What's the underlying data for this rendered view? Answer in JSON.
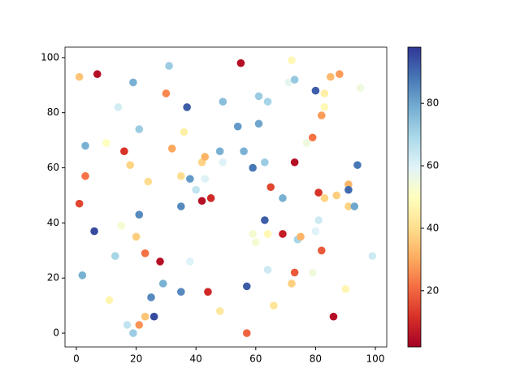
{
  "chart_data": {
    "type": "scatter",
    "colormap": "RdYlBu",
    "x": [
      1,
      7,
      19,
      31,
      55,
      72,
      30,
      14,
      37,
      49,
      61,
      64,
      71,
      73,
      80,
      85,
      88,
      95,
      83,
      83,
      82,
      21,
      36,
      54,
      61,
      3,
      10,
      16,
      32,
      48,
      56,
      77,
      79,
      18,
      42,
      43,
      49,
      59,
      63,
      73,
      94,
      3,
      24,
      35,
      38,
      43,
      40,
      65,
      69,
      81,
      83,
      87,
      91,
      91,
      91,
      93,
      1,
      6,
      21,
      35,
      42,
      45,
      63,
      81,
      15,
      20,
      59,
      60,
      64,
      69,
      74,
      75,
      80,
      82,
      13,
      23,
      28,
      38,
      64,
      73,
      79,
      99,
      2,
      29,
      72,
      57,
      25,
      35,
      44,
      90,
      11,
      66,
      48,
      17,
      21,
      23,
      26,
      86,
      19,
      57
    ],
    "y": [
      93,
      94,
      91,
      97,
      98,
      99,
      87,
      82,
      82,
      84,
      86,
      84,
      91,
      92,
      88,
      93,
      94,
      89,
      87,
      82,
      79,
      74,
      73,
      75,
      76,
      68,
      69,
      66,
      67,
      66,
      66,
      69,
      71,
      61,
      62,
      64,
      62,
      60,
      62,
      62,
      61,
      57,
      55,
      57,
      56,
      56,
      52,
      53,
      49,
      51,
      49,
      50,
      54,
      52,
      46,
      46,
      47,
      37,
      43,
      46,
      48,
      49,
      41,
      41,
      39,
      35,
      36,
      33,
      36,
      36,
      34,
      35,
      37,
      30,
      28,
      29,
      26,
      26,
      23,
      22,
      22,
      28,
      21,
      18,
      18,
      17,
      13,
      15,
      15,
      16,
      12,
      10,
      8,
      3,
      3,
      6,
      6,
      6,
      0,
      0
    ],
    "c": [
      35,
      5,
      78,
      72,
      5,
      48,
      25,
      62,
      92,
      75,
      72,
      70,
      58,
      73,
      92,
      33,
      28,
      55,
      45,
      48,
      28,
      72,
      45,
      82,
      80,
      78,
      50,
      12,
      30,
      78,
      78,
      55,
      22,
      38,
      38,
      32,
      60,
      88,
      72,
      5,
      88,
      22,
      40,
      40,
      82,
      60,
      65,
      15,
      78,
      12,
      38,
      37,
      32,
      90,
      38,
      80,
      15,
      95,
      85,
      85,
      5,
      10,
      92,
      63,
      53,
      37,
      53,
      53,
      48,
      8,
      70,
      32,
      60,
      18,
      70,
      22,
      5,
      60,
      63,
      18,
      55,
      63,
      78,
      78,
      37,
      92,
      85,
      85,
      10,
      47,
      47,
      42,
      43,
      65,
      27,
      35,
      95,
      5,
      72,
      20
    ],
    "xlim": [
      -3.8,
      103.8
    ],
    "ylim": [
      -5,
      103.8
    ],
    "xticks": [
      0,
      20,
      40,
      60,
      80,
      100
    ],
    "yticks": [
      0,
      20,
      40,
      60,
      80,
      100
    ],
    "clim": [
      2,
      98
    ],
    "cticks": [
      20,
      40,
      60,
      80
    ]
  }
}
